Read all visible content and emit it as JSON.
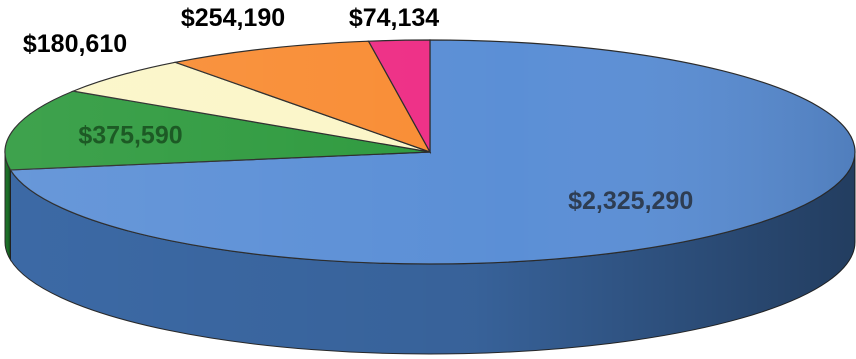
{
  "chart_data": {
    "type": "pie",
    "style": "3d-exploded-none",
    "title": "",
    "legend": "none",
    "slices": [
      {
        "value": 2325290,
        "label": "$2,325,290",
        "color": "#5b8fd6",
        "side_color": "#3f6fae"
      },
      {
        "value": 375590,
        "label": "$375,590",
        "color": "#2e9a3e",
        "side_color": "#1f7a2c"
      },
      {
        "value": 180610,
        "label": "$180,610",
        "color": "#fbf6c8",
        "side_color": "#ddd6a0"
      },
      {
        "value": 254190,
        "label": "$254,190",
        "color": "#f98d35",
        "side_color": "#d06a18"
      },
      {
        "value": 74134,
        "label": "$74,134",
        "color": "#ee2f86",
        "side_color": "#c01a64"
      }
    ]
  }
}
